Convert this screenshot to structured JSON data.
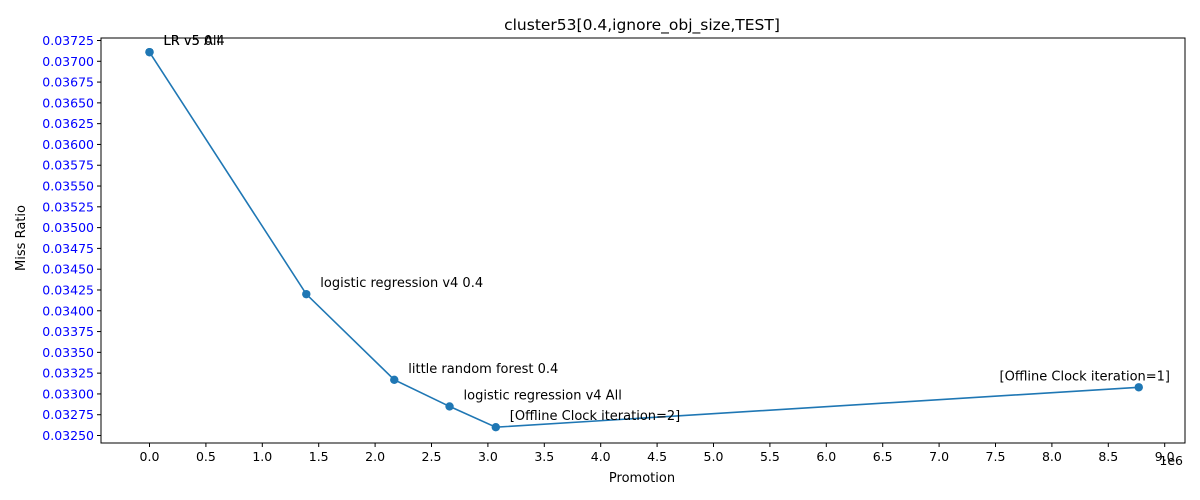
{
  "chart_data": {
    "type": "line",
    "title": "cluster53[0.4,ignore_obj_size,TEST]",
    "xlabel": "Promotion",
    "ylabel": "Miss Ratio",
    "x_offset_label": "1e6",
    "x_scale": 1000000,
    "xlim": [
      -0.43,
      9.18
    ],
    "ylim": [
      0.03241,
      0.03728
    ],
    "x_ticks": [
      0.0,
      0.5,
      1.0,
      1.5,
      2.0,
      2.5,
      3.0,
      3.5,
      4.0,
      4.5,
      5.0,
      5.5,
      6.0,
      6.5,
      7.0,
      7.5,
      8.0,
      8.5,
      9.0
    ],
    "x_tick_labels": [
      "0.0",
      "0.5",
      "1.0",
      "1.5",
      "2.0",
      "2.5",
      "3.0",
      "3.5",
      "4.0",
      "4.5",
      "5.0",
      "5.5",
      "6.0",
      "6.5",
      "7.0",
      "7.5",
      "8.0",
      "8.5",
      "9.0"
    ],
    "y_ticks": [
      0.0325,
      0.03275,
      0.033,
      0.03325,
      0.0335,
      0.03375,
      0.034,
      0.03425,
      0.0345,
      0.03475,
      0.035,
      0.03525,
      0.0355,
      0.03575,
      0.036,
      0.03625,
      0.0365,
      0.03675,
      0.037,
      0.03725
    ],
    "y_tick_labels": [
      "0.03250",
      "0.03275",
      "0.03300",
      "0.03325",
      "0.03350",
      "0.03375",
      "0.03400",
      "0.03425",
      "0.03450",
      "0.03475",
      "0.03500",
      "0.03525",
      "0.03550",
      "0.03575",
      "0.03600",
      "0.03625",
      "0.03650",
      "0.03675",
      "0.03700",
      "0.03725"
    ],
    "y_tick_color": "#0000ff",
    "line_color": "#1f77b4",
    "grid": false,
    "series": [
      {
        "points": [
          {
            "x": 0.0,
            "y": 0.03711,
            "label": "LR v5 All"
          },
          {
            "x": 0.0,
            "y": 0.03711,
            "label": "LR v5 0.4"
          },
          {
            "x": 1.39,
            "y": 0.0342,
            "label": "logistic regression v4 0.4"
          },
          {
            "x": 2.17,
            "y": 0.03317,
            "label": "little random forest 0.4"
          },
          {
            "x": 2.66,
            "y": 0.03285,
            "label": "logistic regression v4 All"
          },
          {
            "x": 3.07,
            "y": 0.0326,
            "label": "[Offline Clock iteration=2]"
          },
          {
            "x": 8.77,
            "y": 0.03308,
            "label": "[Offline Clock iteration=1]"
          }
        ]
      }
    ]
  }
}
